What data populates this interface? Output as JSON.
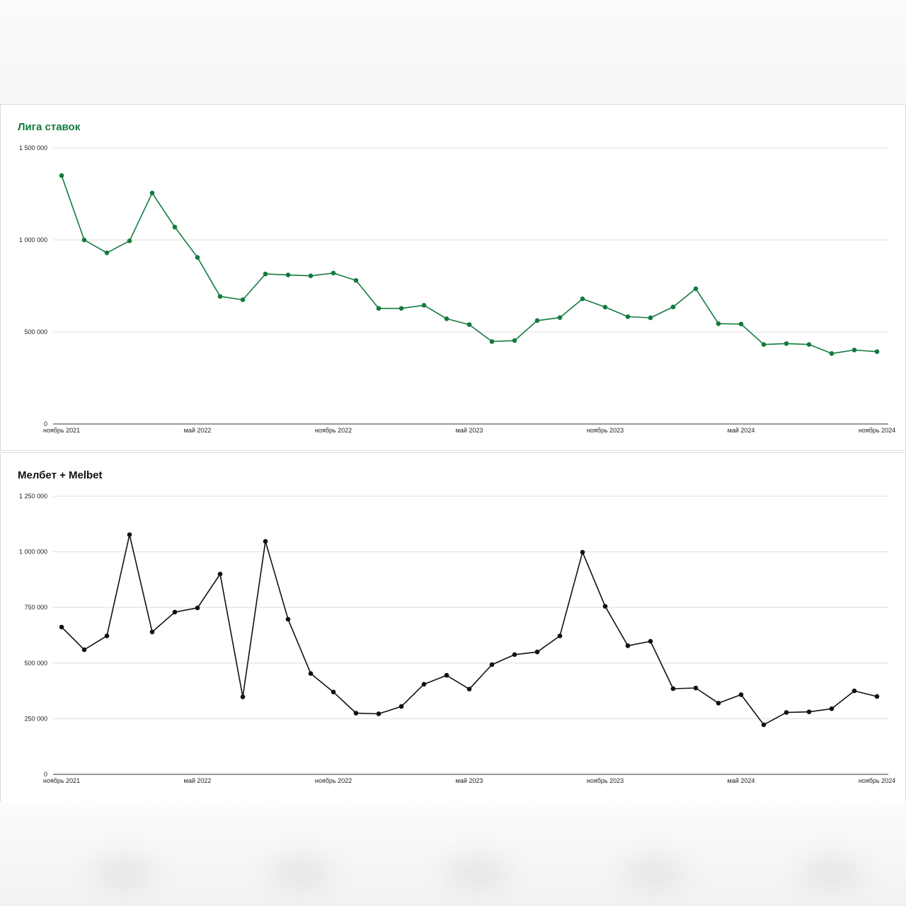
{
  "charts": [
    {
      "title": "Лига ставок",
      "color": "#137a3d",
      "type": "line",
      "ylim": [
        0,
        1500000
      ],
      "y_ticks": [
        0,
        500000,
        1000000,
        1500000
      ],
      "y_tick_labels": [
        "0",
        "500 000",
        "1 000 000",
        "1 500 000"
      ],
      "x_tick_labels": [
        "ноябрь 2021",
        "май 2022",
        "ноябрь 2022",
        "май 2023",
        "ноябрь 2023",
        "май 2024",
        "ноябрь 2024"
      ],
      "x_tick_months": [
        "2021-11",
        "2022-05",
        "2022-11",
        "2023-05",
        "2023-11",
        "2024-05",
        "2024-11"
      ],
      "grid": true,
      "legend": "none"
    },
    {
      "title": "Мелбет + Melbet",
      "color": "#111111",
      "type": "line",
      "ylim": [
        0,
        1250000
      ],
      "y_ticks": [
        0,
        250000,
        500000,
        750000,
        1000000,
        1250000
      ],
      "y_tick_labels": [
        "0",
        "250 000",
        "500 000",
        "750 000",
        "1 000 000",
        "1 250 000"
      ],
      "x_tick_labels": [
        "ноябрь 2021",
        "май 2022",
        "ноябрь 2022",
        "май 2023",
        "ноябрь 2023",
        "май 2024",
        "ноябрь 2024"
      ],
      "x_tick_months": [
        "2021-11",
        "2022-05",
        "2022-11",
        "2023-05",
        "2023-11",
        "2024-05",
        "2024-11"
      ],
      "grid": true,
      "legend": "none"
    }
  ],
  "chart_data": [
    {
      "type": "line",
      "title": "Лига ставок",
      "xlabel": "",
      "ylabel": "",
      "ylim": [
        0,
        1500000
      ],
      "x": [
        "2021-11",
        "2021-12",
        "2022-01",
        "2022-02",
        "2022-03",
        "2022-04",
        "2022-05",
        "2022-06",
        "2022-07",
        "2022-08",
        "2022-09",
        "2022-10",
        "2022-11",
        "2022-12",
        "2023-01",
        "2023-02",
        "2023-03",
        "2023-04",
        "2023-05",
        "2023-06",
        "2023-07",
        "2023-08",
        "2023-09",
        "2023-10",
        "2023-11",
        "2023-12",
        "2024-01",
        "2024-02",
        "2024-03",
        "2024-04",
        "2024-05",
        "2024-06",
        "2024-07",
        "2024-08",
        "2024-09",
        "2024-10",
        "2024-11"
      ],
      "values": [
        1350000,
        1000000,
        930000,
        995000,
        1255000,
        1070000,
        905000,
        693000,
        675000,
        815000,
        810000,
        805000,
        820000,
        780000,
        628000,
        628000,
        645000,
        572000,
        540000,
        448000,
        453000,
        562000,
        578000,
        680000,
        635000,
        583000,
        577000,
        636000,
        735000,
        545000,
        543000,
        432000,
        437000,
        432000,
        383000,
        402000,
        393000
      ]
    },
    {
      "type": "line",
      "title": "Мелбет + Melbet",
      "xlabel": "",
      "ylabel": "",
      "ylim": [
        0,
        1250000
      ],
      "x": [
        "2021-11",
        "2021-12",
        "2022-01",
        "2022-02",
        "2022-03",
        "2022-04",
        "2022-05",
        "2022-06",
        "2022-07",
        "2022-08",
        "2022-09",
        "2022-10",
        "2022-11",
        "2022-12",
        "2023-01",
        "2023-02",
        "2023-03",
        "2023-04",
        "2023-05",
        "2023-06",
        "2023-07",
        "2023-08",
        "2023-09",
        "2023-10",
        "2023-11",
        "2023-12",
        "2024-01",
        "2024-02",
        "2024-03",
        "2024-04",
        "2024-05",
        "2024-06",
        "2024-07",
        "2024-08",
        "2024-09",
        "2024-10",
        "2024-11"
      ],
      "values": [
        662000,
        560000,
        622000,
        1077000,
        640000,
        729000,
        748000,
        900000,
        348000,
        1047000,
        697000,
        453000,
        370000,
        275000,
        272000,
        305000,
        405000,
        445000,
        383000,
        493000,
        538000,
        550000,
        622000,
        998000,
        755000,
        578000,
        598000,
        385000,
        388000,
        320000,
        358000,
        223000,
        278000,
        281000,
        295000,
        375000,
        350000
      ]
    }
  ]
}
